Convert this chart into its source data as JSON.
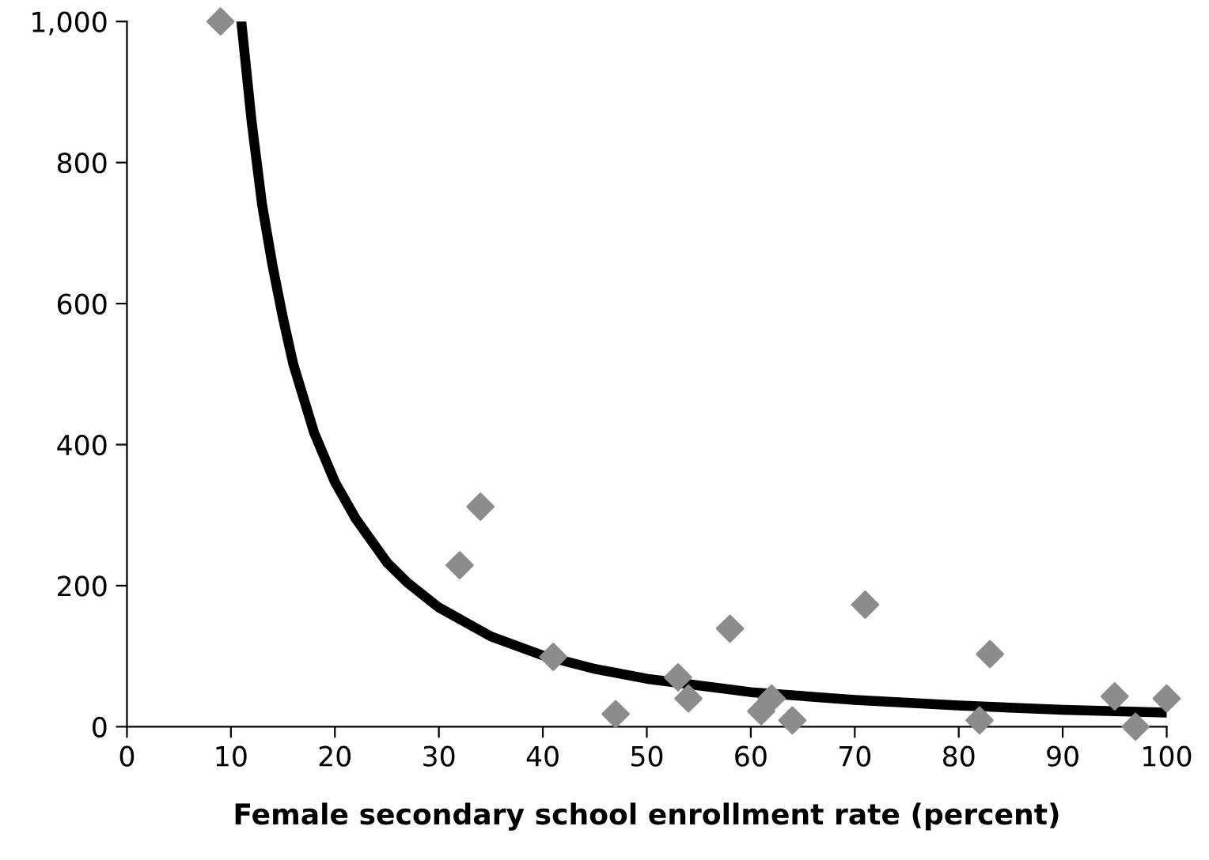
{
  "chart_data": {
    "type": "scatter",
    "xlabel": "Female secondary school enrollment rate (percent)",
    "xlim": [
      0,
      100
    ],
    "xticks": [
      0,
      10,
      20,
      30,
      40,
      50,
      60,
      70,
      80,
      90,
      100
    ],
    "ylim": [
      0,
      1000
    ],
    "yticks": [
      0,
      200,
      400,
      600,
      800,
      {
        "value": 1000,
        "label": "1,000"
      }
    ],
    "grid": false,
    "legend": false,
    "series": [
      {
        "color": "#8c8c8c",
        "marker": "diamond",
        "x": [
          9,
          32,
          34,
          41,
          47,
          53,
          54,
          58,
          61,
          62,
          64,
          71,
          82,
          83,
          95,
          97,
          100
        ],
        "values": [
          1000,
          229,
          312,
          99,
          18,
          70,
          40,
          139,
          22,
          40,
          9,
          173,
          9,
          103,
          43,
          0,
          40
        ]
      },
      {
        "type": "line",
        "color": "#000000",
        "marker": "none",
        "line_style": "solid",
        "x": [
          11,
          12,
          13,
          14,
          15,
          16,
          18,
          20,
          22,
          25,
          27,
          30,
          35,
          40,
          45,
          50,
          60,
          70,
          80,
          90,
          100
        ],
        "values": [
          1000,
          857,
          740,
          654,
          580,
          514,
          417,
          347,
          295,
          233,
          204,
          169,
          128,
          101,
          82,
          68,
          49,
          38,
          30,
          24,
          20
        ]
      }
    ]
  }
}
